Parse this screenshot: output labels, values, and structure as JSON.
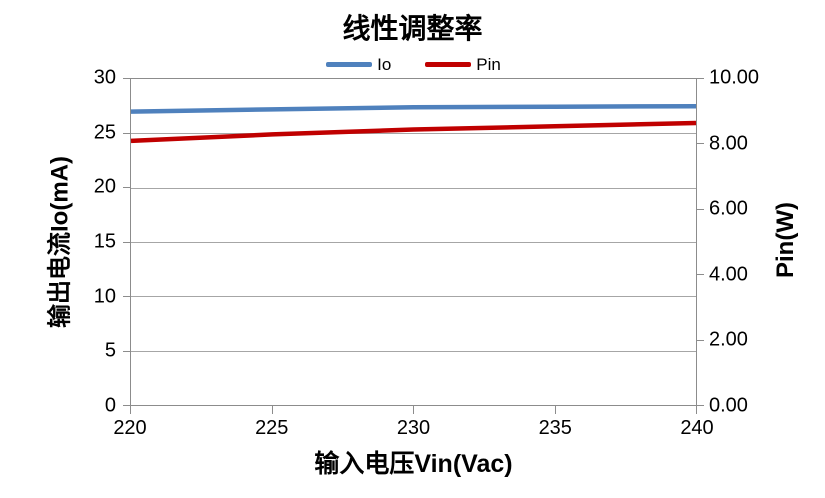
{
  "title": "线性调整率",
  "legend": {
    "items": [
      {
        "label": "Io",
        "color": "#4F81BD"
      },
      {
        "label": "Pin",
        "color": "#C00000"
      }
    ]
  },
  "axes": {
    "left": {
      "title": "输出电流Io(mA)",
      "ticks": [
        "30",
        "25",
        "20",
        "15",
        "10",
        "5",
        "0"
      ]
    },
    "right": {
      "title": "Pin(W)",
      "ticks": [
        "10.00",
        "8.00",
        "6.00",
        "4.00",
        "2.00",
        "0.00"
      ]
    },
    "x": {
      "title": "输入电压Vin(Vac)",
      "ticks": [
        "220",
        "225",
        "230",
        "235",
        "240"
      ]
    }
  },
  "colors": {
    "io_line": "#4F81BD",
    "pin_line": "#C00000",
    "gridline": "#a6a6a6",
    "axis": "#8c8c8c",
    "text": "#000000"
  },
  "chart_data": {
    "type": "line",
    "title": "线性调整率",
    "xlabel": "输入电压Vin(Vac)",
    "ylabel_left": "输出电流Io(mA)",
    "ylabel_right": "Pin(W)",
    "x": [
      220,
      225,
      230,
      235,
      240
    ],
    "xlim": [
      220,
      240
    ],
    "ylim_left": [
      0,
      30
    ],
    "ylim_right": [
      0,
      10
    ],
    "grid": "horizontal-only",
    "legend_position": "top-center",
    "series": [
      {
        "name": "Io",
        "axis": "left",
        "unit": "mA",
        "color": "#4F81BD",
        "values": [
          27.0,
          27.2,
          27.4,
          27.45,
          27.5
        ]
      },
      {
        "name": "Pin",
        "axis": "right",
        "unit": "W",
        "color": "#C00000",
        "values": [
          8.1,
          8.3,
          8.45,
          8.55,
          8.65
        ]
      }
    ]
  }
}
